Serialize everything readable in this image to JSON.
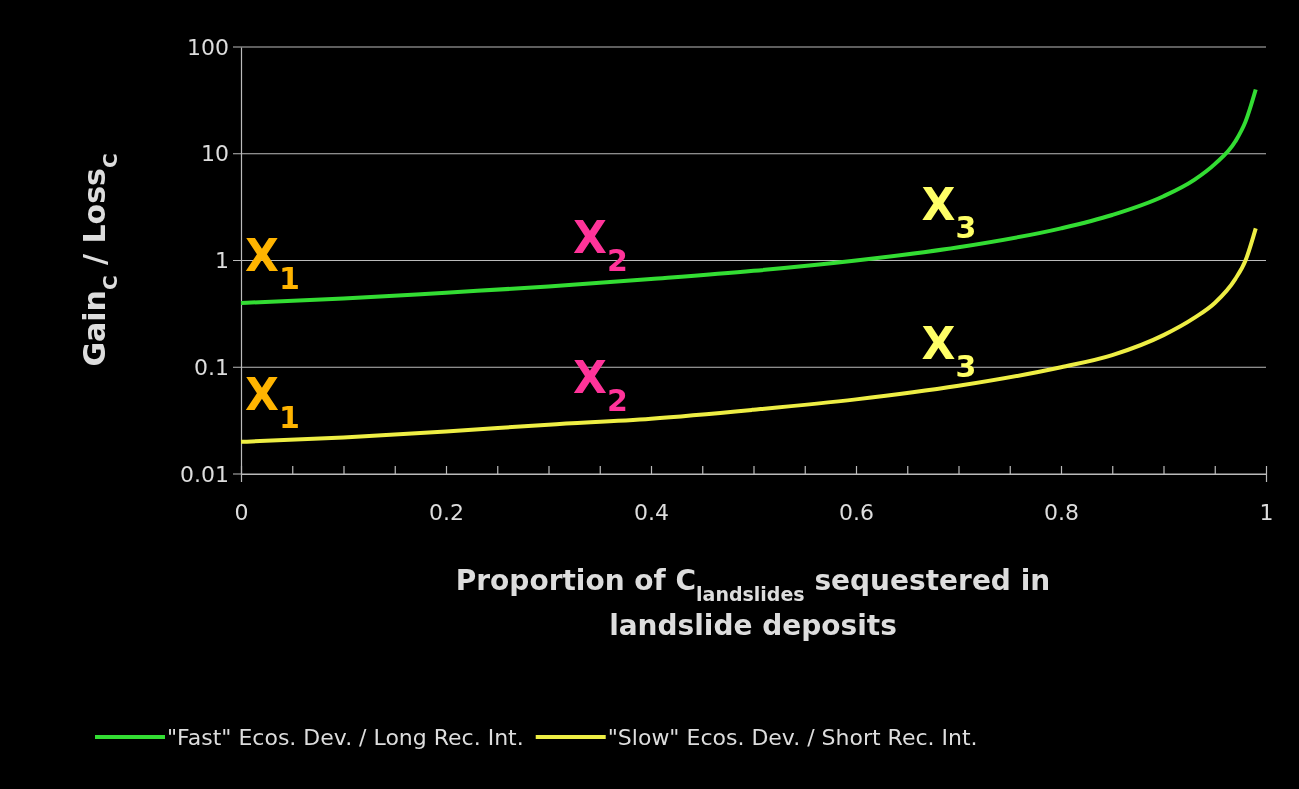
{
  "chart_data": {
    "type": "line",
    "xlabel": "Proportion of C$_{landslides}$ sequestered in landslide deposits",
    "ylabel": "Gain$_{C}$ / Loss$_{C}$",
    "x": [
      0,
      0.1,
      0.2,
      0.3,
      0.4,
      0.5,
      0.6,
      0.7,
      0.8,
      0.85,
      0.9,
      0.93,
      0.95,
      0.97,
      0.98,
      0.99
    ],
    "series": [
      {
        "name": "\"Fast\" Ecos. Dev. / Long Rec. Int.",
        "color": "#33dd33",
        "values": [
          0.4,
          0.44,
          0.5,
          0.57,
          0.67,
          0.8,
          1.0,
          1.33,
          2,
          2.67,
          4,
          5.7,
          8,
          13,
          20,
          40
        ]
      },
      {
        "name": "\"Slow\" Ecos. Dev. / Short Rec. Int.",
        "color": "#eeee44",
        "values": [
          0.02,
          0.022,
          0.025,
          0.029,
          0.033,
          0.04,
          0.05,
          0.067,
          0.1,
          0.13,
          0.2,
          0.29,
          0.4,
          0.67,
          1,
          2
        ]
      }
    ],
    "log": true,
    "xlim": [
      0,
      1
    ],
    "ylim": [
      0.01,
      100
    ],
    "xticks": [
      0,
      {
        "value": 0.05,
        "label": null
      },
      {
        "value": 0.1,
        "label": null
      },
      {
        "value": 0.15,
        "label": null
      },
      0.2,
      {
        "value": 0.25,
        "label": null
      },
      {
        "value": 0.3,
        "label": null
      },
      {
        "value": 0.35,
        "label": null
      },
      0.4,
      {
        "value": 0.45,
        "label": null
      },
      {
        "value": 0.5,
        "label": null
      },
      {
        "value": 0.55,
        "label": null
      },
      0.6,
      {
        "value": 0.65,
        "label": null
      },
      {
        "value": 0.7,
        "label": null
      },
      {
        "value": 0.75,
        "label": null
      },
      0.8,
      {
        "value": 0.85,
        "label": null
      },
      {
        "value": 0.9,
        "label": null
      },
      {
        "value": 0.95,
        "label": null
      },
      1
    ],
    "yticks": [
      0.01,
      0.1,
      1,
      10,
      100
    ],
    "grid": "y",
    "legend": "bottom",
    "marker": "none",
    "line_style": "solid",
    "annotations": [
      {
        "text": "X$_{1}$",
        "x": 0,
        "y": 0.4
      },
      {
        "text": "X$_{1}$",
        "x": 0,
        "y": 0.02
      },
      {
        "text": "X$_{2}$",
        "x": 0.32,
        "y": 0.59
      },
      {
        "text": "X$_{2}$",
        "x": 0.32,
        "y": 0.029
      },
      {
        "text": "X$_{3}$",
        "x": 0.66,
        "y": 1.2
      },
      {
        "text": "X$_{3}$",
        "x": 0.66,
        "y": 0.06
      }
    ]
  }
}
